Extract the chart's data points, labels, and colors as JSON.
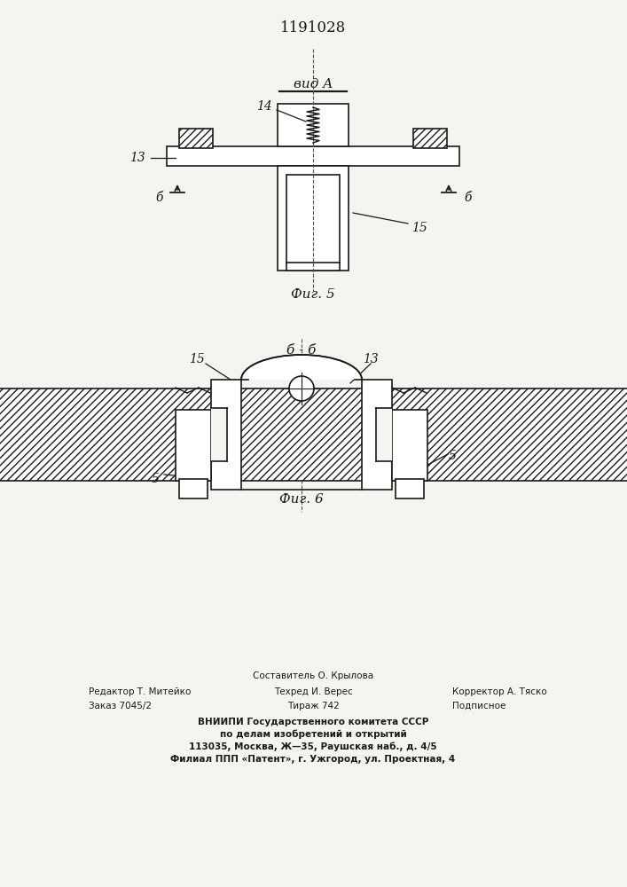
{
  "title": "1191028",
  "fig5_label": "Фиг. 5",
  "fig6_label": "Фиг. 6",
  "vid_a_label": "вид A",
  "bb_label": "б - б",
  "label_13": "13",
  "label_14": "14",
  "label_15_fig5": "15",
  "label_15_fig6": "15",
  "label_13_fig6": "13",
  "label_6": "б",
  "label_5": "5",
  "bg_color": "#f5f4f0",
  "line_color": "#1a1a1a",
  "footer_line1": "Составитель О. Крылова",
  "footer_line2_left": "Редактор Т. Митейко",
  "footer_line2_mid": "Техред И. Верес",
  "footer_line2_right": "Корректор А. Тяско",
  "footer_line3_left": "Заказ 7045/2",
  "footer_line3_mid": "Тираж 742",
  "footer_line3_right": "Подписное",
  "footer_bold1": "ВНИИПИ Государственного комитета СССР",
  "footer_bold2": "по делам изобретений и открытий",
  "footer_bold3": "113035, Москва, Ж—35, Раушская наб., д. 4/5",
  "footer_bold4": "Филиал ППП «Патент», г. Ужгород, ул. Проектная, 4"
}
